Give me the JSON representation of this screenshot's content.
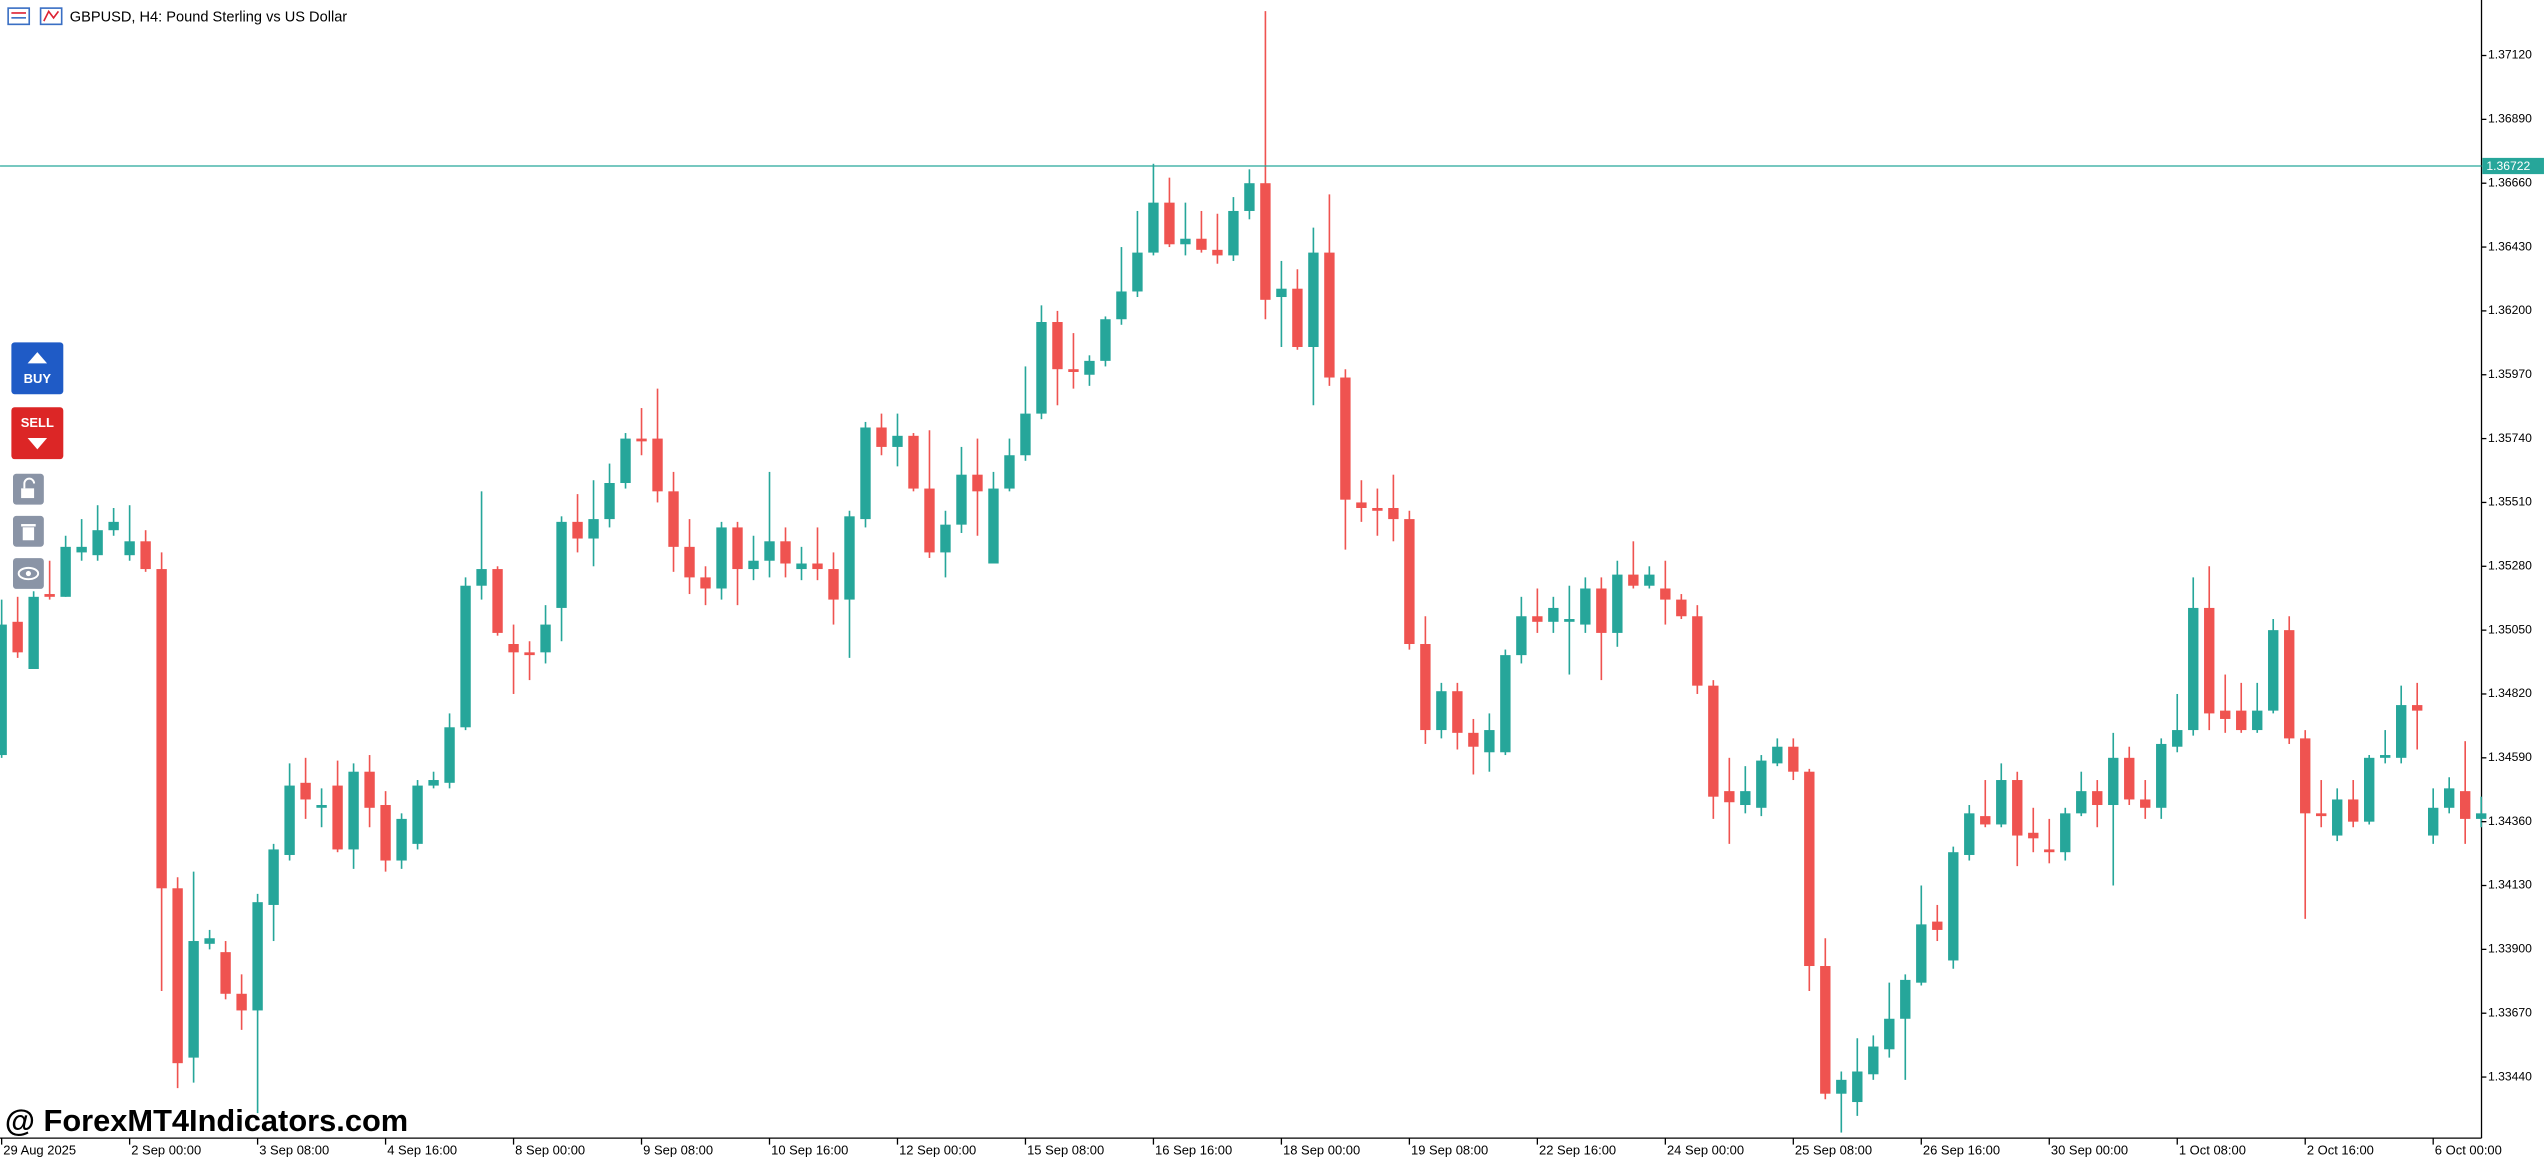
{
  "chart_data": {
    "type": "candlestick",
    "title": "GBPUSD, H4:  Pound Sterling vs US Dollar",
    "categories": [
      "29 Aug 2025",
      null,
      null,
      null,
      null,
      null,
      null,
      null,
      "2 Sep 00:00",
      null,
      null,
      null,
      null,
      null,
      null,
      null,
      "3 Sep 08:00",
      null,
      null,
      null,
      null,
      null,
      null,
      null,
      "4 Sep 16:00",
      null,
      null,
      null,
      null,
      null,
      null,
      null,
      "8 Sep 00:00",
      null,
      null,
      null,
      null,
      null,
      null,
      null,
      "9 Sep 08:00",
      null,
      null,
      null,
      null,
      null,
      null,
      null,
      "10 Sep 16:00",
      null,
      null,
      null,
      null,
      null,
      null,
      null,
      "12 Sep 00:00",
      null,
      null,
      null,
      null,
      null,
      null,
      null,
      "15 Sep 08:00",
      null,
      null,
      null,
      null,
      null,
      null,
      null,
      "16 Sep 16:00",
      null,
      null,
      null,
      null,
      null,
      null,
      null,
      "18 Sep 00:00",
      null,
      null,
      null,
      null,
      null,
      null,
      null,
      "19 Sep 08:00",
      null,
      null,
      null,
      null,
      null,
      null,
      null,
      "22 Sep 16:00",
      null,
      null,
      null,
      null,
      null,
      null,
      null,
      "24 Sep 00:00",
      null,
      null,
      null,
      null,
      null,
      null,
      null,
      "25 Sep 08:00",
      null,
      null,
      null,
      null,
      null,
      null,
      null,
      "26 Sep 16:00",
      null,
      null,
      null,
      null,
      null,
      null,
      null,
      "30 Sep 00:00",
      null,
      null,
      null,
      null,
      null,
      null,
      null,
      "1 Oct 08:00",
      null,
      null,
      null,
      null,
      null,
      null,
      null,
      "2 Oct 16:00",
      null,
      null,
      null,
      null,
      null,
      null,
      null,
      "6 Oct 00:00",
      null,
      null,
      null
    ],
    "open": [
      1.346,
      1.3508,
      1.3491,
      1.3518,
      1.3517,
      1.3533,
      1.3532,
      1.3541,
      1.3532,
      1.3537,
      1.3527,
      1.3412,
      1.3351,
      1.3392,
      1.3389,
      1.3374,
      1.3368,
      1.3406,
      1.3424,
      1.345,
      1.3441,
      1.3449,
      1.3426,
      1.3454,
      1.3442,
      1.3422,
      1.3428,
      1.3449,
      1.345,
      1.347,
      1.3521,
      1.3527,
      1.35,
      1.3497,
      1.3497,
      1.3513,
      1.3544,
      1.3538,
      1.3545,
      1.3558,
      1.3574,
      1.3574,
      1.3555,
      1.3535,
      1.3524,
      1.352,
      1.3542,
      1.3527,
      1.353,
      1.3537,
      1.3527,
      1.3529,
      1.3527,
      1.3516,
      1.3545,
      1.3578,
      1.3571,
      1.3575,
      1.3556,
      1.3533,
      1.3543,
      1.3561,
      1.3529,
      1.3556,
      1.3568,
      1.3583,
      1.3616,
      1.3599,
      1.3597,
      1.3602,
      1.3617,
      1.3627,
      1.3641,
      1.3659,
      1.3644,
      1.3646,
      1.3642,
      1.364,
      1.3656,
      1.3666,
      1.3625,
      1.3628,
      1.3607,
      1.3641,
      1.3596,
      1.3551,
      1.3549,
      1.3549,
      1.3545,
      1.35,
      1.3469,
      1.3483,
      1.3468,
      1.3461,
      1.3461,
      1.3496,
      1.351,
      1.3508,
      1.3508,
      1.3507,
      1.352,
      1.3504,
      1.3525,
      1.3521,
      1.352,
      1.3516,
      1.351,
      1.3485,
      1.3447,
      1.3442,
      1.3441,
      1.3457,
      1.3463,
      1.3454,
      1.3384,
      1.3338,
      1.3335,
      1.3345,
      1.3354,
      1.3365,
      1.3378,
      1.34,
      1.3386,
      1.3424,
      1.3438,
      1.3435,
      1.3451,
      1.3432,
      1.3426,
      1.3425,
      1.3439,
      1.3447,
      1.3442,
      1.3459,
      1.3444,
      1.3441,
      1.3463,
      1.3469,
      1.3513,
      1.3476,
      1.3476,
      1.3469,
      1.3476,
      1.3505,
      1.3466,
      1.3439,
      1.3431,
      1.3444,
      1.3436,
      1.3459,
      1.3459,
      1.3478,
      1.3431,
      1.3441,
      1.3447,
      1.3437
    ],
    "high": [
      1.3516,
      1.3517,
      1.3519,
      1.353,
      1.3539,
      1.3545,
      1.355,
      1.3549,
      1.355,
      1.3541,
      1.3533,
      1.3416,
      1.3418,
      1.3397,
      1.3393,
      1.3381,
      1.341,
      1.3428,
      1.3457,
      1.3459,
      1.3448,
      1.3458,
      1.3457,
      1.346,
      1.3447,
      1.3439,
      1.3451,
      1.3454,
      1.3475,
      1.3524,
      1.3555,
      1.3528,
      1.3507,
      1.3501,
      1.3514,
      1.3546,
      1.3554,
      1.3559,
      1.3565,
      1.3576,
      1.3585,
      1.3592,
      1.3562,
      1.3545,
      1.3528,
      1.3544,
      1.3544,
      1.3539,
      1.3562,
      1.3542,
      1.3535,
      1.3542,
      1.3533,
      1.3548,
      1.358,
      1.3583,
      1.3583,
      1.3576,
      1.3577,
      1.3548,
      1.3571,
      1.3574,
      1.3562,
      1.3574,
      1.36,
      1.3622,
      1.362,
      1.3612,
      1.3604,
      1.3618,
      1.3643,
      1.3656,
      1.3673,
      1.3668,
      1.3659,
      1.3656,
      1.3655,
      1.3661,
      1.3671,
      1.3728,
      1.3638,
      1.3635,
      1.365,
      1.3662,
      1.3599,
      1.3559,
      1.3556,
      1.3561,
      1.3548,
      1.351,
      1.3486,
      1.3486,
      1.3473,
      1.3475,
      1.3498,
      1.3517,
      1.352,
      1.3517,
      1.3521,
      1.3524,
      1.3524,
      1.353,
      1.3537,
      1.3528,
      1.353,
      1.3518,
      1.3514,
      1.3487,
      1.3459,
      1.3456,
      1.346,
      1.3466,
      1.3466,
      1.3455,
      1.3394,
      1.3346,
      1.3358,
      1.3359,
      1.3378,
      1.3381,
      1.3413,
      1.3406,
      1.3427,
      1.3442,
      1.3451,
      1.3457,
      1.3454,
      1.3441,
      1.3437,
      1.3441,
      1.3454,
      1.3451,
      1.3468,
      1.3463,
      1.3451,
      1.3466,
      1.3482,
      1.3524,
      1.3528,
      1.3489,
      1.3486,
      1.3486,
      1.3509,
      1.351,
      1.3469,
      1.3451,
      1.3448,
      1.3451,
      1.346,
      1.3469,
      1.3485,
      1.3486,
      1.3448,
      1.3452,
      1.3465,
      1.3445
    ],
    "low": [
      1.3459,
      1.3495,
      1.3491,
      1.3516,
      1.3517,
      1.353,
      1.353,
      1.3539,
      1.353,
      1.3526,
      1.3375,
      1.334,
      1.3342,
      1.339,
      1.3372,
      1.3361,
      1.3331,
      1.3393,
      1.3422,
      1.3437,
      1.3434,
      1.3425,
      1.3419,
      1.3434,
      1.3418,
      1.3419,
      1.3426,
      1.3448,
      1.3448,
      1.3469,
      1.3516,
      1.3503,
      1.3482,
      1.3487,
      1.3493,
      1.3501,
      1.3533,
      1.3528,
      1.3542,
      1.3556,
      1.3568,
      1.3551,
      1.3526,
      1.3518,
      1.3514,
      1.3516,
      1.3514,
      1.3523,
      1.3524,
      1.3524,
      1.3523,
      1.3523,
      1.3507,
      1.3495,
      1.3542,
      1.3568,
      1.3564,
      1.3555,
      1.3531,
      1.3524,
      1.354,
      1.3539,
      1.3529,
      1.3555,
      1.3566,
      1.3581,
      1.3586,
      1.3592,
      1.3593,
      1.36,
      1.3615,
      1.3625,
      1.364,
      1.3643,
      1.364,
      1.3641,
      1.3637,
      1.3638,
      1.3653,
      1.3617,
      1.3607,
      1.3606,
      1.3586,
      1.3593,
      1.3534,
      1.3544,
      1.3539,
      1.3537,
      1.3498,
      1.3464,
      1.3466,
      1.3462,
      1.3453,
      1.3454,
      1.346,
      1.3493,
      1.3504,
      1.3504,
      1.3489,
      1.3504,
      1.3487,
      1.3499,
      1.352,
      1.352,
      1.3507,
      1.3509,
      1.3482,
      1.3437,
      1.3428,
      1.3439,
      1.3438,
      1.3456,
      1.3451,
      1.3375,
      1.3336,
      1.3324,
      1.333,
      1.3343,
      1.3351,
      1.3343,
      1.3377,
      1.3393,
      1.3383,
      1.3422,
      1.3434,
      1.3434,
      1.342,
      1.3425,
      1.3421,
      1.3422,
      1.3438,
      1.3434,
      1.3413,
      1.3442,
      1.3437,
      1.3437,
      1.3461,
      1.3467,
      1.3469,
      1.3468,
      1.3468,
      1.3468,
      1.3475,
      1.3464,
      1.3401,
      1.3434,
      1.3429,
      1.3434,
      1.3435,
      1.3457,
      1.3457,
      1.3462,
      1.3428,
      1.3439,
      1.3428,
      1.3434
    ],
    "close": [
      1.3507,
      1.3497,
      1.3517,
      1.3517,
      1.3535,
      1.3535,
      1.3541,
      1.3544,
      1.3537,
      1.3527,
      1.3412,
      1.3349,
      1.3393,
      1.3394,
      1.3374,
      1.3368,
      1.3407,
      1.3426,
      1.3449,
      1.3444,
      1.3442,
      1.3426,
      1.3454,
      1.3441,
      1.3422,
      1.3437,
      1.3449,
      1.3451,
      1.347,
      1.3521,
      1.3527,
      1.3504,
      1.3497,
      1.3496,
      1.3507,
      1.3544,
      1.3538,
      1.3545,
      1.3558,
      1.3574,
      1.3573,
      1.3555,
      1.3535,
      1.3524,
      1.352,
      1.3542,
      1.3527,
      1.353,
      1.3537,
      1.3529,
      1.3529,
      1.3527,
      1.3516,
      1.3546,
      1.3578,
      1.3571,
      1.3575,
      1.3556,
      1.3533,
      1.3543,
      1.3561,
      1.3555,
      1.3556,
      1.3568,
      1.3583,
      1.3616,
      1.3599,
      1.3598,
      1.3602,
      1.3617,
      1.3627,
      1.3641,
      1.3659,
      1.3644,
      1.3646,
      1.3642,
      1.364,
      1.3656,
      1.3666,
      1.3624,
      1.3628,
      1.3607,
      1.3641,
      1.3596,
      1.3552,
      1.3549,
      1.3548,
      1.3545,
      1.35,
      1.3469,
      1.3483,
      1.3468,
      1.3463,
      1.3469,
      1.3496,
      1.351,
      1.3508,
      1.3513,
      1.3509,
      1.352,
      1.3504,
      1.3525,
      1.3521,
      1.3525,
      1.3516,
      1.351,
      1.3485,
      1.3445,
      1.3443,
      1.3447,
      1.3458,
      1.3463,
      1.3454,
      1.3384,
      1.3338,
      1.3343,
      1.3346,
      1.3355,
      1.3365,
      1.3379,
      1.3399,
      1.3397,
      1.3425,
      1.3439,
      1.3435,
      1.3451,
      1.3431,
      1.343,
      1.3425,
      1.3439,
      1.3447,
      1.3442,
      1.3459,
      1.3444,
      1.3441,
      1.3464,
      1.3469,
      1.3513,
      1.3475,
      1.3473,
      1.3469,
      1.3476,
      1.3505,
      1.3466,
      1.3439,
      1.3438,
      1.3444,
      1.3436,
      1.3459,
      1.346,
      1.3478,
      1.3476,
      1.3441,
      1.3448,
      1.3437,
      1.3439
    ],
    "up_color": "#26a69a",
    "down_color": "#ef5350",
    "ylim": [
      1.3322,
      1.3732
    ],
    "yticks": [
      {
        "value": 1.3712,
        "label": "1.37120"
      },
      {
        "value": 1.3689,
        "label": "1.36890"
      },
      {
        "value": 1.3666,
        "label": "1.36660"
      },
      {
        "value": 1.3643,
        "label": "1.36430"
      },
      {
        "value": 1.362,
        "label": "1.36200"
      },
      {
        "value": 1.3597,
        "label": "1.35970"
      },
      {
        "value": 1.3574,
        "label": "1.35740"
      },
      {
        "value": 1.3551,
        "label": "1.35510"
      },
      {
        "value": 1.3528,
        "label": "1.35280"
      },
      {
        "value": 1.3505,
        "label": "1.35050"
      },
      {
        "value": 1.3482,
        "label": "1.34820"
      },
      {
        "value": 1.3459,
        "label": "1.34590"
      },
      {
        "value": 1.3436,
        "label": "1.34360"
      },
      {
        "value": 1.3413,
        "label": "1.34130"
      },
      {
        "value": 1.339,
        "label": "1.33900"
      },
      {
        "value": 1.3367,
        "label": "1.33670"
      },
      {
        "value": 1.3344,
        "label": "1.33440"
      }
    ],
    "current_price": 1.36722,
    "current_price_color": "#26a69a",
    "grid": false
  },
  "buttons": {
    "buy": "BUY",
    "sell": "SELL"
  },
  "watermark": "@ ForexMT4Indicators.com"
}
